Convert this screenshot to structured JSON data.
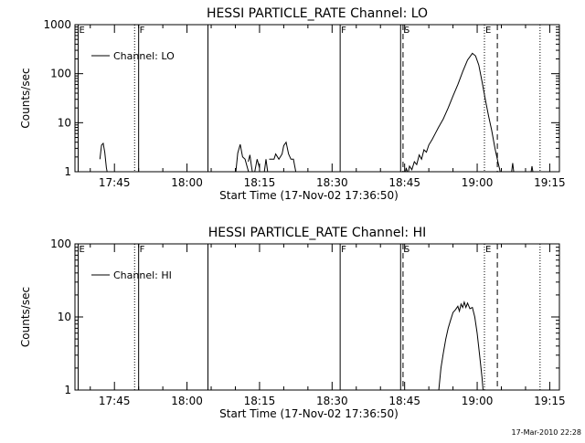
{
  "footer": {
    "timestamp": "17-Mar-2010 22:28"
  },
  "chart_data": [
    {
      "type": "line",
      "title": "HESSI PARTICLE_RATE Channel: LO",
      "xlabel": "Start Time (17-Nov-02 17:36:50)",
      "ylabel": "Counts/sec",
      "y_scale": "log",
      "ylim": [
        1,
        1000
      ],
      "y_ticks": [
        "1",
        "10",
        "100",
        "1000"
      ],
      "xlim": [
        "17:36:50",
        "19:17:00"
      ],
      "x_ticks": [
        "17:45",
        "18:00",
        "18:15",
        "18:30",
        "18:45",
        "19:00",
        "19:15"
      ],
      "legend": {
        "position": "top-left",
        "label": "Channel: LO"
      },
      "markers": [
        {
          "time": "17:37:30",
          "style": "solid",
          "label": "E"
        },
        {
          "time": "17:49:10",
          "style": "dotted",
          "label": ""
        },
        {
          "time": "17:50:00",
          "style": "solid",
          "label": "F"
        },
        {
          "time": "18:04:20",
          "style": "solid",
          "label": ""
        },
        {
          "time": "18:31:40",
          "style": "solid",
          "label": "F"
        },
        {
          "time": "18:44:10",
          "style": "solid",
          "label": ""
        },
        {
          "time": "18:44:40",
          "style": "dashed",
          "label": "S"
        },
        {
          "time": "19:01:30",
          "style": "dotted",
          "label": "E"
        },
        {
          "time": "19:04:10",
          "style": "dashed",
          "label": ""
        },
        {
          "time": "19:13:00",
          "style": "dotted",
          "label": ""
        }
      ],
      "segments": [
        [
          [
            "17:42:00",
            1.8
          ],
          [
            "17:42:20",
            3.5
          ],
          [
            "17:42:40",
            3.8
          ],
          [
            "17:43:00",
            2.5
          ],
          [
            "17:43:20",
            1.2
          ],
          [
            "17:43:40",
            0.8
          ]
        ],
        [
          [
            "18:10:00",
            0.8
          ],
          [
            "18:10:30",
            2.4
          ],
          [
            "18:11:00",
            3.6
          ],
          [
            "18:11:30",
            2.0
          ],
          [
            "18:12:00",
            1.8
          ],
          [
            "18:12:30",
            1.2
          ],
          [
            "18:13:00",
            0.8
          ]
        ],
        [
          [
            "18:12:40",
            1.6
          ],
          [
            "18:13:00",
            2.2
          ],
          [
            "18:13:20",
            1.3
          ],
          [
            "18:13:40",
            0.8
          ]
        ],
        [
          [
            "18:14:00",
            1.0
          ],
          [
            "18:14:30",
            1.8
          ],
          [
            "18:15:00",
            1.2
          ]
        ],
        [
          [
            "18:16:00",
            1.0
          ],
          [
            "18:16:20",
            1.8
          ],
          [
            "18:16:40",
            1.0
          ]
        ],
        [
          [
            "18:17:00",
            1.8
          ],
          [
            "18:18:00",
            1.8
          ],
          [
            "18:18:20",
            2.3
          ],
          [
            "18:19:00",
            1.8
          ],
          [
            "18:19:40",
            2.3
          ],
          [
            "18:20:00",
            3.4
          ],
          [
            "18:20:30",
            4.0
          ],
          [
            "18:21:00",
            2.3
          ],
          [
            "18:21:30",
            1.8
          ],
          [
            "18:22:00",
            1.8
          ],
          [
            "18:22:30",
            1.0
          ]
        ],
        [
          [
            "18:45:00",
            0.8
          ],
          [
            "18:45:20",
            1.2
          ],
          [
            "18:45:40",
            0.9
          ],
          [
            "18:46:00",
            1.3
          ],
          [
            "18:46:30",
            1.1
          ],
          [
            "18:47:00",
            1.6
          ],
          [
            "18:47:30",
            1.4
          ],
          [
            "18:48:00",
            2.2
          ],
          [
            "18:48:30",
            1.8
          ],
          [
            "18:49:00",
            2.8
          ],
          [
            "18:49:30",
            2.5
          ],
          [
            "18:50:00",
            3.5
          ],
          [
            "18:50:40",
            4.5
          ],
          [
            "18:51:20",
            6.0
          ],
          [
            "18:52:00",
            8.0
          ],
          [
            "18:53:00",
            12
          ],
          [
            "18:54:00",
            20
          ],
          [
            "18:55:00",
            35
          ],
          [
            "18:56:00",
            60
          ],
          [
            "18:57:00",
            110
          ],
          [
            "18:58:00",
            190
          ],
          [
            "18:59:00",
            260
          ],
          [
            "18:59:40",
            230
          ],
          [
            "19:00:20",
            150
          ],
          [
            "19:01:00",
            70
          ],
          [
            "19:01:40",
            30
          ],
          [
            "19:02:20",
            14
          ],
          [
            "19:03:00",
            7
          ],
          [
            "19:03:40",
            3
          ],
          [
            "19:04:20",
            1.5
          ],
          [
            "19:05:00",
            0.8
          ]
        ],
        [
          [
            "19:07:00",
            0.8
          ],
          [
            "19:07:20",
            1.5
          ],
          [
            "19:07:40",
            0.8
          ]
        ],
        [
          [
            "19:11:00",
            0.8
          ],
          [
            "19:11:20",
            1.3
          ],
          [
            "19:11:40",
            0.8
          ]
        ]
      ]
    },
    {
      "type": "line",
      "title": "HESSI PARTICLE_RATE Channel: HI",
      "xlabel": "Start Time (17-Nov-02 17:36:50)",
      "ylabel": "Counts/sec",
      "y_scale": "log",
      "ylim": [
        1,
        100
      ],
      "y_ticks": [
        "1",
        "10",
        "100"
      ],
      "xlim": [
        "17:36:50",
        "19:17:00"
      ],
      "x_ticks": [
        "17:45",
        "18:00",
        "18:15",
        "18:30",
        "18:45",
        "19:00",
        "19:15"
      ],
      "legend": {
        "position": "top-left",
        "label": "Channel: HI"
      },
      "markers": [
        {
          "time": "17:37:30",
          "style": "solid",
          "label": "E"
        },
        {
          "time": "17:49:10",
          "style": "dotted",
          "label": ""
        },
        {
          "time": "17:50:00",
          "style": "solid",
          "label": "F"
        },
        {
          "time": "18:04:20",
          "style": "solid",
          "label": ""
        },
        {
          "time": "18:31:40",
          "style": "solid",
          "label": "F"
        },
        {
          "time": "18:44:10",
          "style": "solid",
          "label": ""
        },
        {
          "time": "18:44:40",
          "style": "dashed",
          "label": "S"
        },
        {
          "time": "19:01:30",
          "style": "dotted",
          "label": "E"
        },
        {
          "time": "19:04:10",
          "style": "dashed",
          "label": ""
        },
        {
          "time": "19:13:00",
          "style": "dotted",
          "label": ""
        }
      ],
      "segments": [
        [
          [
            "18:52:00",
            0.9
          ],
          [
            "18:52:30",
            2.0
          ],
          [
            "18:53:00",
            3.2
          ],
          [
            "18:53:30",
            5.0
          ],
          [
            "18:54:00",
            7.0
          ],
          [
            "18:54:30",
            9.0
          ],
          [
            "18:55:00",
            11.5
          ],
          [
            "18:55:30",
            12.5
          ],
          [
            "18:56:00",
            14.0
          ],
          [
            "18:56:20",
            12.0
          ],
          [
            "18:56:40",
            15.0
          ],
          [
            "18:57:00",
            13.5
          ],
          [
            "18:57:20",
            16.0
          ],
          [
            "18:57:40",
            13.5
          ],
          [
            "18:58:00",
            15.5
          ],
          [
            "18:58:30",
            13.0
          ],
          [
            "18:59:00",
            13.5
          ],
          [
            "18:59:30",
            10.0
          ],
          [
            "19:00:00",
            6.0
          ],
          [
            "19:00:30",
            3.0
          ],
          [
            "19:01:00",
            1.5
          ],
          [
            "19:01:20",
            0.8
          ]
        ]
      ]
    }
  ]
}
